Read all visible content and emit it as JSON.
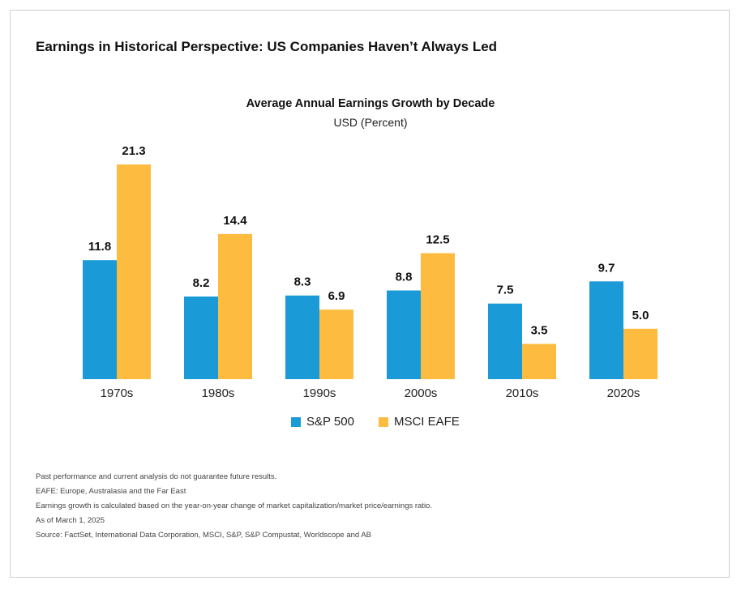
{
  "main_title": "Earnings in Historical Perspective: US Companies Haven’t Always Led",
  "colors": {
    "sp500": "#1a9ad6",
    "eafe": "#fdbb3f",
    "border": "#cfcfcf"
  },
  "chart_data": {
    "type": "bar",
    "title": "Average Annual Earnings Growth by Decade",
    "subtitle": "USD (Percent)",
    "categories": [
      "1970s",
      "1980s",
      "1990s",
      "2000s",
      "2010s",
      "2020s"
    ],
    "series": [
      {
        "name": "S&P 500",
        "values": [
          11.8,
          8.2,
          8.3,
          8.8,
          7.5,
          9.7
        ],
        "color": "#1a9ad6"
      },
      {
        "name": "MSCI EAFE",
        "values": [
          21.3,
          14.4,
          6.9,
          12.5,
          3.5,
          5.0
        ],
        "color": "#fdbb3f"
      }
    ],
    "ylim": [
      0,
      21.3
    ],
    "grid": false,
    "legend_position": "bottom-center"
  },
  "footnotes": [
    "Past performance and current analysis do not guarantee future results.",
    "EAFE: Europe, Australasia and the Far East",
    "Earnings growth is calculated based on the year-on-year change of market capitalization/market price/earnings ratio.",
    "As of March 1, 2025",
    "Source: FactSet, International Data Corporation, MSCI, S&P, S&P Compustat, Worldscope and AB"
  ]
}
